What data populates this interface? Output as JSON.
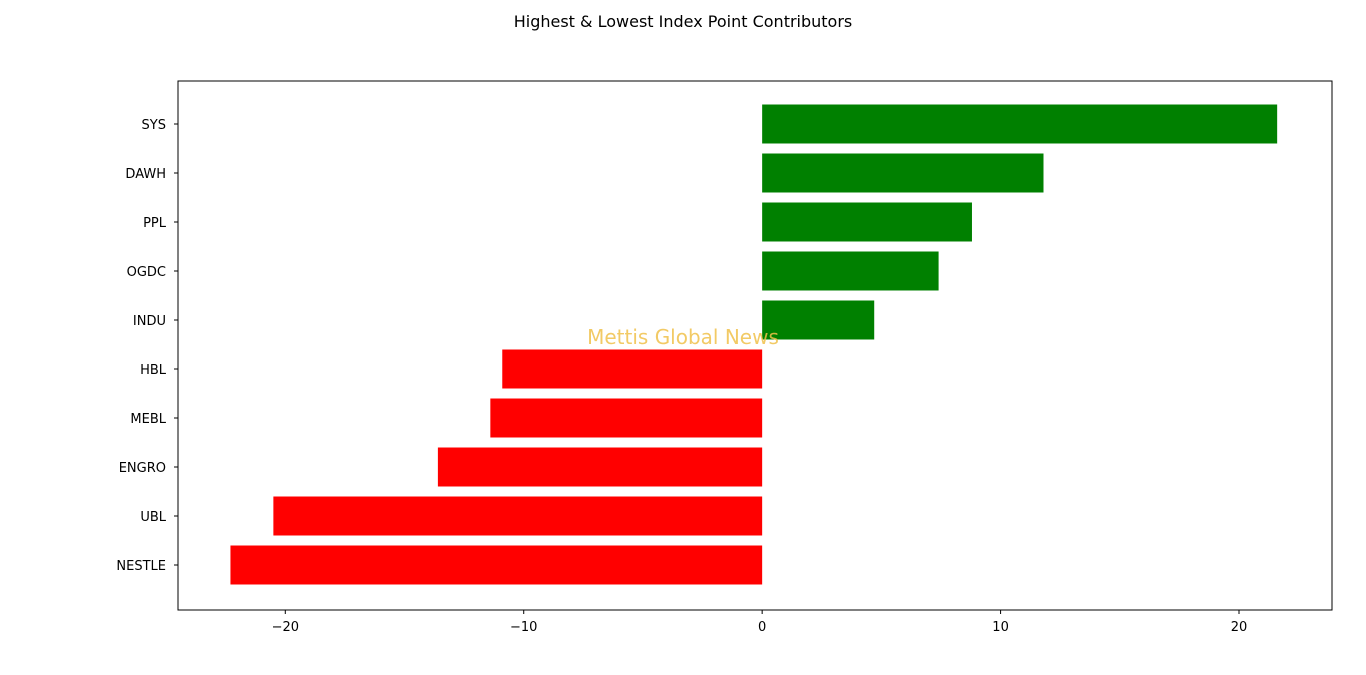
{
  "chart_data": {
    "type": "bar",
    "orientation": "horizontal",
    "title": "Highest & Lowest Index Point Contributors",
    "xlabel": "",
    "ylabel": "",
    "xlim": [
      -24.5,
      23.9
    ],
    "xticks": [
      -20,
      -10,
      0,
      10,
      20
    ],
    "xtick_labels": [
      "−20",
      "−10",
      "0",
      "10",
      "20"
    ],
    "categories": [
      "SYS",
      "DAWH",
      "PPL",
      "OGDC",
      "INDU",
      "HBL",
      "MEBL",
      "ENGRO",
      "UBL",
      "NESTLE"
    ],
    "values": [
      21.6,
      11.8,
      8.8,
      7.4,
      4.7,
      -10.9,
      -11.4,
      -13.6,
      -20.5,
      -22.3
    ],
    "colors": {
      "positive": "#008000",
      "negative": "#ff0000"
    },
    "grid": false,
    "legend": "none",
    "watermark": "Mettis Global News"
  }
}
